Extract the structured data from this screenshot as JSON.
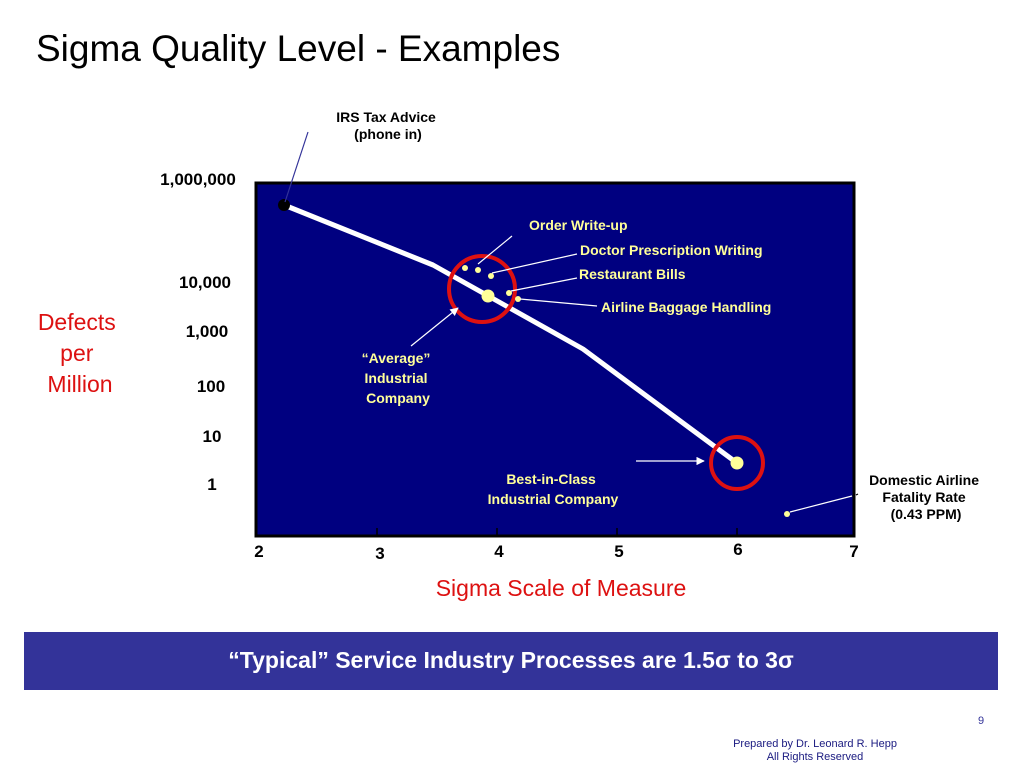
{
  "slide": {
    "title": "Sigma Quality Level - Examples",
    "banner": "“Typical” Service Industry Processes are 1.5σ to 3σ",
    "slide_number": "9",
    "footer_line1": "Prepared by Dr. Leonard R. Hepp",
    "footer_line2": "All Rights Reserved"
  },
  "chart_data": {
    "type": "line",
    "title": "",
    "xlabel": "Sigma Scale of Measure",
    "ylabel_lines": [
      "Defects",
      "per",
      "Million"
    ],
    "x_ticks": [
      "2",
      "3",
      "4",
      "5",
      "6",
      "7"
    ],
    "y_ticks": [
      "1,000,000",
      "10,000",
      "1,000",
      "100",
      "10",
      "1"
    ],
    "xlim": [
      2,
      7
    ],
    "y_scale": "log",
    "plot_background": "#000080",
    "label_color": "#ffff99",
    "highlight_color": "#dd1111",
    "series": [
      {
        "x": [
          2.2,
          3.5,
          4.7,
          6.0
        ],
        "y": [
          700000,
          25000,
          800,
          3.4
        ]
      }
    ],
    "annotations": [
      {
        "text": "IRS Tax Advice\n(phone in)",
        "x": 2.2,
        "y": 700000
      },
      {
        "text": "Order Write-up",
        "x": 3.75,
        "y": 25000
      },
      {
        "text": "Doctor Prescription Writing",
        "x": 3.85,
        "y": 22000
      },
      {
        "text": "Restaurant Bills",
        "x": 3.95,
        "y": 20000
      },
      {
        "text": "Airline Baggage Handling",
        "x": 4.15,
        "y": 7000
      },
      {
        "text": "“Average”\nIndustrial\nCompany",
        "x": 3.9,
        "y": 7000
      },
      {
        "text": "Best-in-Class\nIndustrial Company",
        "x": 6.0,
        "y": 3.4
      },
      {
        "text": "Domestic Airline\nFatality Rate\n(0.43 PPM)",
        "x": 6.4,
        "y": 0.43
      }
    ]
  }
}
